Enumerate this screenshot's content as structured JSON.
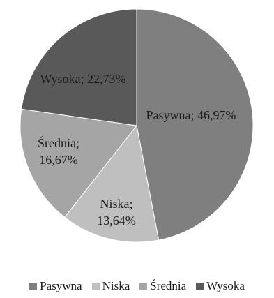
{
  "chart_data": {
    "type": "pie",
    "title": "",
    "legend_position": "bottom",
    "slices": [
      {
        "name": "Pasywna",
        "value": 46.97,
        "label_lines": [
          "Pasywna; 46,97%"
        ],
        "color": "#7f7f7f"
      },
      {
        "name": "Niska",
        "value": 13.64,
        "label_lines": [
          "Niska;",
          "13,64%"
        ],
        "color": "#bfbfbf"
      },
      {
        "name": "Średnia",
        "value": 16.67,
        "label_lines": [
          "Średnia;",
          "16,67%"
        ],
        "color": "#a5a5a5"
      },
      {
        "name": "Wysoka",
        "value": 22.73,
        "label_lines": [
          "Wysoka; 22,73%"
        ],
        "color": "#595959"
      }
    ]
  }
}
